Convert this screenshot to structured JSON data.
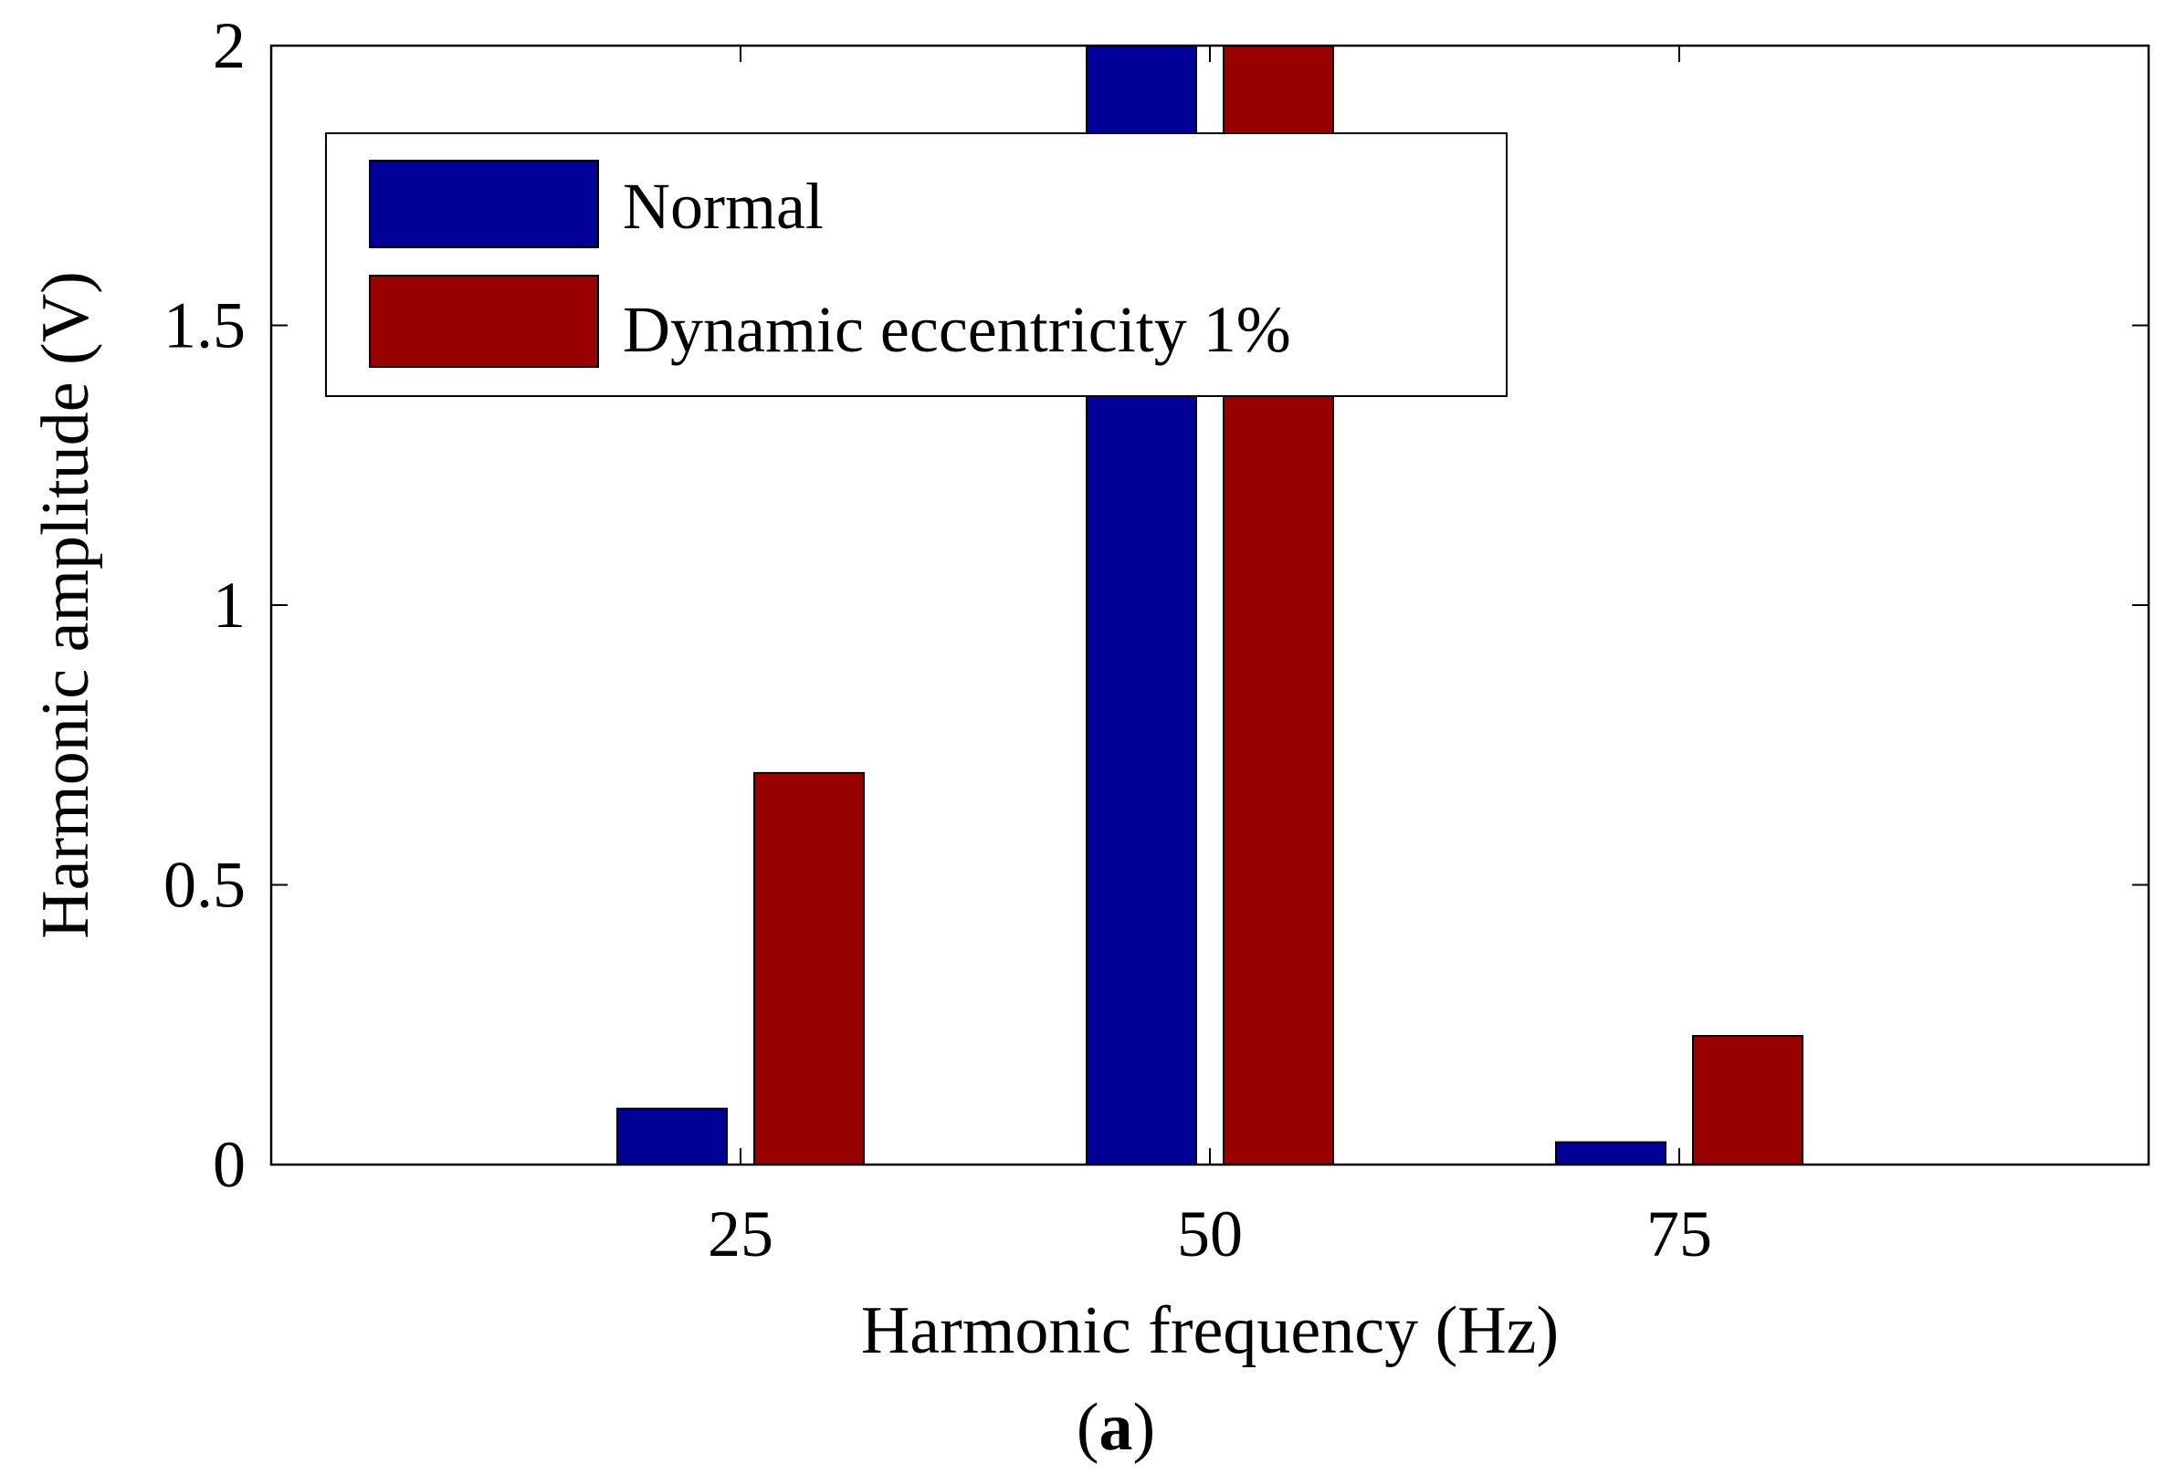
{
  "chart_data": {
    "type": "bar",
    "categories": [
      "25",
      "50",
      "75"
    ],
    "series": [
      {
        "name": "Normal",
        "color": "#000099",
        "values": [
          0.1,
          2.0,
          0.04
        ]
      },
      {
        "name": "Dynamic eccentricity 1%",
        "color": "#990000",
        "values": [
          0.7,
          2.0,
          0.23
        ]
      }
    ],
    "xlabel": "Harmonic frequency (Hz)",
    "ylabel": "Harmonic amplitude (V)",
    "ylim": [
      0,
      2
    ],
    "yticks": [
      "0",
      "0.5",
      "1",
      "1.5",
      "2"
    ],
    "grid": false,
    "legend": "top-left",
    "caption": {
      "open": "(",
      "letter": "a",
      "close": ")"
    }
  }
}
